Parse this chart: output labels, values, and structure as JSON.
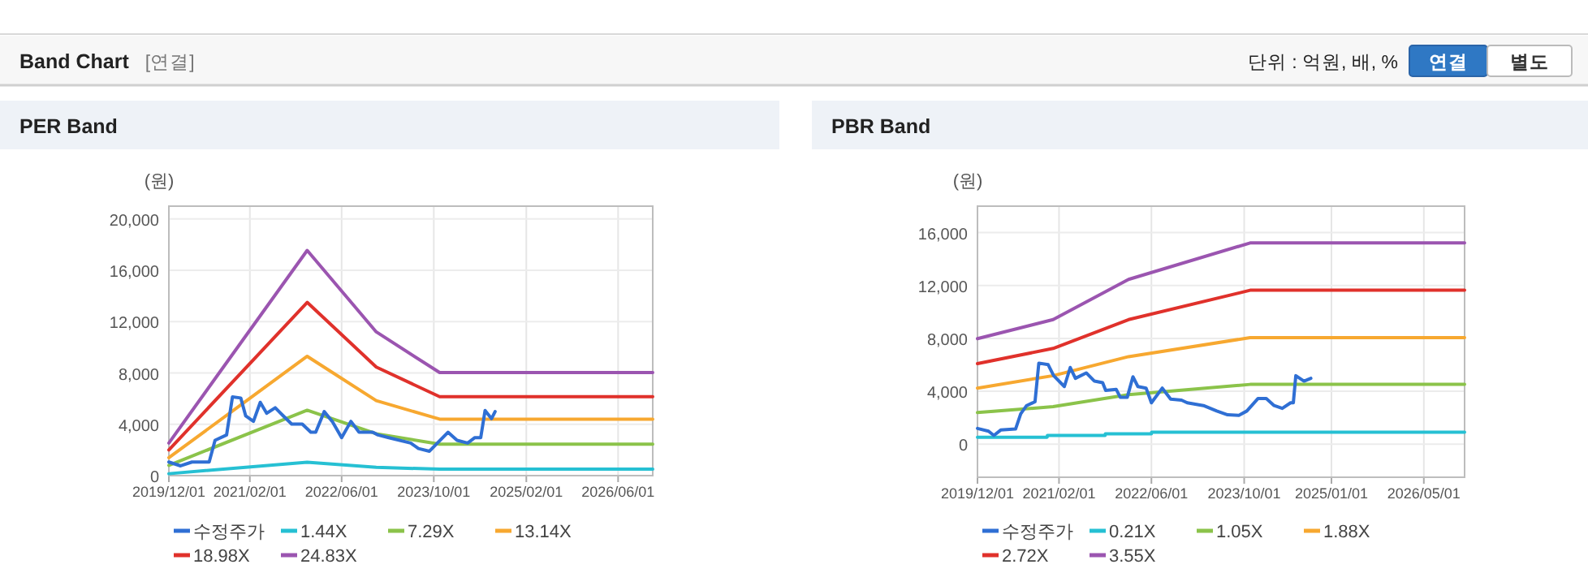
{
  "chart_data": [
    {
      "type": "other",
      "title": "Band Chart",
      "subtitle": "[연결]",
      "annotations": [
        "단위 : 억원, 배, %",
        "연결",
        "별도"
      ]
    },
    {
      "type": "line",
      "title": "PER Band",
      "ylabel": "(원)",
      "xlim": [
        "2019-12-01",
        "2026-12-01"
      ],
      "ylim": [
        0,
        21000
      ],
      "xticks": [
        {
          "value": "2019-12-01",
          "label": "2019/12/01"
        },
        {
          "value": "2021-02-01",
          "label": "2021/02/01"
        },
        {
          "value": "2022-06-01",
          "label": "2022/06/01"
        },
        {
          "value": "2023-10-01",
          "label": "2023/10/01"
        },
        {
          "value": "2025-02-01",
          "label": "2025/02/01"
        },
        {
          "value": "2026-06-01",
          "label": "2026/06/01"
        }
      ],
      "yticks": [
        {
          "value": 0,
          "label": "0"
        },
        {
          "value": 4000,
          "label": "4,000"
        },
        {
          "value": 8000,
          "label": "8,000"
        },
        {
          "value": 12000,
          "label": "12,000"
        },
        {
          "value": 16000,
          "label": "16,000"
        },
        {
          "value": 20000,
          "label": "20,000"
        }
      ],
      "grid": true,
      "legend": "bottom",
      "line_style": "solid",
      "series": [
        {
          "name": "수정주가",
          "color": "#2f6fd4",
          "x": [
            "2019-12-01",
            "2020-02-01",
            "2020-04-01",
            "2020-07-01",
            "2020-08-01",
            "2020-10-01",
            "2020-11-01",
            "2020-12-15",
            "2021-01-10",
            "2021-02-20",
            "2021-03-28",
            "2021-05-01",
            "2021-06-15",
            "2021-07-28",
            "2021-09-10",
            "2021-11-05",
            "2021-12-20",
            "2022-01-15",
            "2022-03-01",
            "2022-04-12",
            "2022-06-01",
            "2022-07-20",
            "2022-09-01",
            "2022-11-12",
            "2022-12-10",
            "2023-02-05",
            "2023-06-01",
            "2023-07-12",
            "2023-09-08",
            "2023-10-20",
            "2023-12-15",
            "2024-02-01",
            "2024-03-28",
            "2024-05-05",
            "2024-06-05",
            "2024-06-28",
            "2024-08-01",
            "2024-08-20"
          ],
          "values": [
            1060,
            760,
            1060,
            1060,
            2750,
            3170,
            6130,
            6050,
            4650,
            4230,
            5710,
            4860,
            5290,
            4650,
            4020,
            4020,
            3380,
            3380,
            4990,
            4230,
            2960,
            4230,
            3380,
            3380,
            3170,
            2960,
            2540,
            2110,
            1900,
            2540,
            3380,
            2750,
            2540,
            2960,
            2960,
            5070,
            4440,
            4990
          ]
        },
        {
          "name": "1.44X",
          "color": "#26c0d3",
          "x": [
            "2019-12-01",
            "2021-12-01",
            "2022-12-01",
            "2023-11-01",
            "2026-12-01"
          ],
          "values": [
            150,
            1050,
            650,
            500,
            500
          ]
        },
        {
          "name": "7.29X",
          "color": "#8bc34a",
          "x": [
            "2019-12-01",
            "2021-12-01",
            "2022-12-01",
            "2023-11-01",
            "2026-12-01"
          ],
          "values": [
            800,
            5100,
            3260,
            2450,
            2450
          ]
        },
        {
          "name": "13.14X",
          "color": "#f7a830",
          "x": [
            "2019-12-01",
            "2021-12-01",
            "2022-12-01",
            "2023-11-01",
            "2026-12-01"
          ],
          "values": [
            1400,
            9300,
            5840,
            4400,
            4400
          ]
        },
        {
          "name": "18.98X",
          "color": "#e0312b",
          "x": [
            "2019-12-01",
            "2021-12-01",
            "2022-12-01",
            "2023-11-01",
            "2026-12-01"
          ],
          "values": [
            2000,
            13500,
            8460,
            6150,
            6150
          ]
        },
        {
          "name": "24.83X",
          "color": "#9b55b0",
          "x": [
            "2019-12-01",
            "2021-12-01",
            "2022-12-01",
            "2023-11-01",
            "2026-12-01"
          ],
          "values": [
            2540,
            17550,
            11200,
            8030,
            8030
          ]
        }
      ]
    },
    {
      "type": "line",
      "title": "PBR Band",
      "ylabel": "(원)",
      "xlim": [
        "2019-12-01",
        "2026-12-01"
      ],
      "ylim": [
        -2500,
        18000
      ],
      "xticks": [
        {
          "value": "2019-12-01",
          "label": "2019/12/01"
        },
        {
          "value": "2021-02-01",
          "label": "2021/02/01"
        },
        {
          "value": "2022-06-01",
          "label": "2022/06/01"
        },
        {
          "value": "2023-10-01",
          "label": "2023/10/01"
        },
        {
          "value": "2025-01-01",
          "label": "2025/01/01"
        },
        {
          "value": "2026-05-01",
          "label": "2026/05/01"
        }
      ],
      "yticks": [
        {
          "value": 0,
          "label": "0"
        },
        {
          "value": 4000,
          "label": "4,000"
        },
        {
          "value": 8000,
          "label": "8,000"
        },
        {
          "value": 12000,
          "label": "12,000"
        },
        {
          "value": 16000,
          "label": "16,000"
        }
      ],
      "grid": true,
      "legend": "bottom",
      "line_style": "solid",
      "series": [
        {
          "name": "수정주가",
          "color": "#2f6fd4",
          "x": [
            "2019-12-01",
            "2020-01-28",
            "2020-02-25",
            "2020-04-01",
            "2020-06-18",
            "2020-07-15",
            "2020-08-15",
            "2020-09-28",
            "2020-10-18",
            "2020-12-06",
            "2021-01-04",
            "2021-03-01",
            "2021-04-01",
            "2021-04-28",
            "2021-06-24",
            "2021-08-06",
            "2021-09-18",
            "2021-10-04",
            "2021-11-28",
            "2021-12-20",
            "2022-01-25",
            "2022-02-24",
            "2022-03-22",
            "2022-05-04",
            "2022-06-01",
            "2022-07-28",
            "2022-09-10",
            "2022-11-06",
            "2022-12-06",
            "2023-03-01",
            "2023-05-10",
            "2023-07-06",
            "2023-09-03",
            "2023-10-15",
            "2023-12-12",
            "2024-01-25",
            "2024-03-06",
            "2024-04-18",
            "2024-06-01",
            "2024-06-15",
            "2024-06-28",
            "2024-08-10",
            "2024-09-15"
          ],
          "values": [
            1190,
            980,
            660,
            1070,
            1150,
            2300,
            2920,
            3210,
            6130,
            6010,
            5180,
            4360,
            5800,
            4980,
            5390,
            4770,
            4650,
            4070,
            4150,
            3540,
            3540,
            5100,
            4360,
            4240,
            3130,
            4240,
            3410,
            3330,
            3130,
            2920,
            2510,
            2220,
            2180,
            2510,
            3450,
            3450,
            2920,
            2710,
            3130,
            3130,
            5180,
            4770,
            4980
          ]
        },
        {
          "name": "0.21X",
          "color": "#26c0d3",
          "x": [
            "2019-12-01",
            "2020-12-01",
            "2020-12-02",
            "2021-10-01",
            "2021-10-02",
            "2022-06-01",
            "2022-06-02",
            "2026-12-01"
          ],
          "values": [
            530,
            530,
            660,
            660,
            780,
            780,
            900,
            900
          ]
        },
        {
          "name": "1.05X",
          "color": "#8bc34a",
          "x": [
            "2019-12-01",
            "2021-01-01",
            "2022-02-01",
            "2023-11-01",
            "2026-12-01"
          ],
          "values": [
            2390,
            2840,
            3740,
            4520,
            4520
          ]
        },
        {
          "name": "1.88X",
          "color": "#f7a830",
          "x": [
            "2019-12-01",
            "2021-01-01",
            "2022-02-01",
            "2023-11-01",
            "2026-12-01"
          ],
          "values": [
            4240,
            5180,
            6620,
            8060,
            8060
          ]
        },
        {
          "name": "2.72X",
          "color": "#e0312b",
          "x": [
            "2019-12-01",
            "2021-01-01",
            "2022-02-01",
            "2023-11-01",
            "2026-12-01"
          ],
          "values": [
            6090,
            7240,
            9420,
            11640,
            11640
          ]
        },
        {
          "name": "3.55X",
          "color": "#9b55b0",
          "x": [
            "2019-12-01",
            "2021-01-01",
            "2022-02-01",
            "2023-11-01",
            "2026-12-01"
          ],
          "values": [
            7980,
            9420,
            12460,
            15220,
            15220
          ]
        }
      ]
    }
  ]
}
